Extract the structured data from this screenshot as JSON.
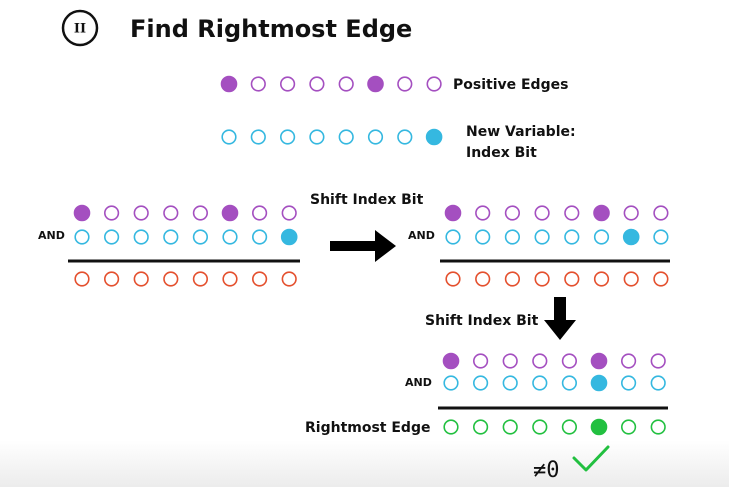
{
  "header": {
    "badge": "II",
    "title": "Find Rightmost Edge"
  },
  "legend": {
    "positive_edges": "Positive Edges",
    "new_variable": [
      "New Variable:",
      "Index Bit"
    ]
  },
  "steps": {
    "and_labels": [
      "AND",
      "AND",
      "AND"
    ],
    "shift_labels": [
      "Shift Index Bit",
      "Shift Index Bit"
    ],
    "result_label": "Rightmost Edge",
    "nonzero": "≠0"
  }
}
